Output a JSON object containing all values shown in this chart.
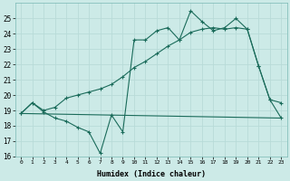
{
  "bg_color": "#cceae7",
  "line_color": "#1a6b5a",
  "grid_color": "#b8dbd8",
  "xlabel": "Humidex (Indice chaleur)",
  "ylim": [
    16,
    26
  ],
  "xlim": [
    -0.5,
    23.5
  ],
  "yticks": [
    16,
    17,
    18,
    19,
    20,
    21,
    22,
    23,
    24,
    25
  ],
  "xticks": [
    0,
    1,
    2,
    3,
    4,
    5,
    6,
    7,
    8,
    9,
    10,
    11,
    12,
    13,
    14,
    15,
    16,
    17,
    18,
    19,
    20,
    21,
    22,
    23
  ],
  "line1_x": [
    0,
    23
  ],
  "line1_y": [
    18.8,
    18.5
  ],
  "line2_x": [
    0,
    1,
    2,
    3,
    4,
    5,
    6,
    7,
    8,
    9,
    10,
    11,
    12,
    13,
    14,
    15,
    16,
    17,
    18,
    19,
    20,
    21,
    22,
    23
  ],
  "line2_y": [
    18.8,
    19.5,
    19.0,
    19.2,
    19.8,
    20.0,
    20.2,
    20.4,
    20.7,
    21.2,
    21.8,
    22.2,
    22.7,
    23.2,
    23.6,
    24.1,
    24.3,
    24.4,
    24.3,
    24.4,
    24.3,
    21.9,
    19.7,
    18.5
  ],
  "line3_x": [
    0,
    1,
    2,
    3,
    4,
    5,
    6,
    7,
    8,
    9,
    10,
    11,
    12,
    13,
    14,
    15,
    16,
    17,
    18,
    19,
    20,
    21,
    22,
    23
  ],
  "line3_y": [
    18.8,
    19.5,
    18.9,
    18.5,
    18.3,
    17.9,
    17.6,
    16.2,
    18.7,
    17.6,
    23.6,
    23.6,
    24.2,
    24.4,
    23.6,
    25.5,
    24.8,
    24.2,
    24.4,
    25.0,
    24.3,
    21.9,
    19.7,
    19.5
  ]
}
